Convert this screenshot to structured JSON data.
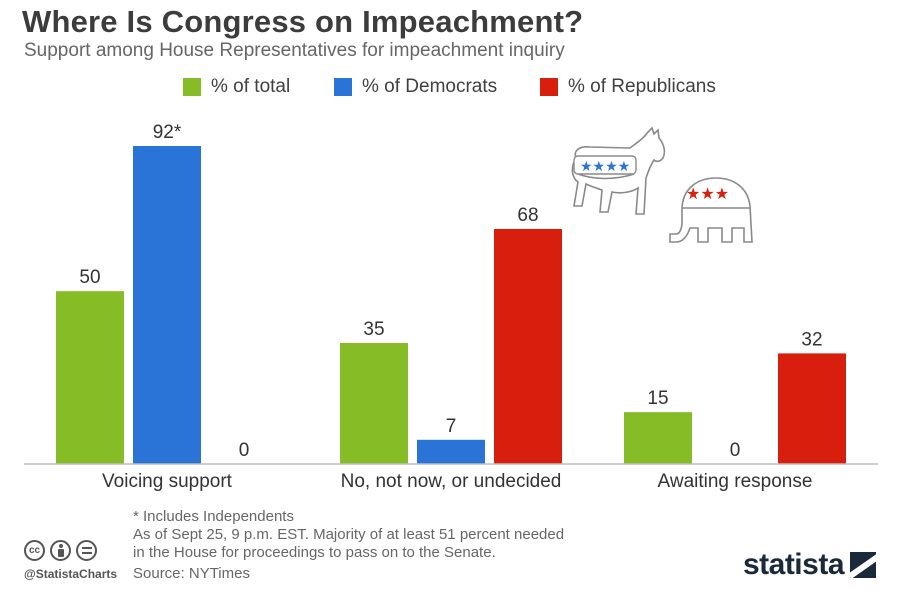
{
  "title": "Where Is Congress on Impeachment?",
  "subtitle": "Support among House Representatives for impeachment inquiry",
  "legend": [
    {
      "label": "% of total",
      "color": "#86bc25"
    },
    {
      "label": "% of Democrats",
      "color": "#2a74d8"
    },
    {
      "label": "% of Republicans",
      "color": "#d81f0d"
    }
  ],
  "chart_data": {
    "type": "bar",
    "categories": [
      "Voicing support",
      "No, not now, or undecided",
      "Awaiting response"
    ],
    "series": [
      {
        "name": "% of total",
        "color": "#86bc25",
        "values": [
          50,
          35,
          15
        ]
      },
      {
        "name": "% of Democrats",
        "color": "#2a74d8",
        "values": [
          92,
          7,
          0
        ]
      },
      {
        "name": "% of Republicans",
        "color": "#d81f0d",
        "values": [
          0,
          68,
          32
        ]
      }
    ],
    "data_labels": [
      [
        "50",
        "35",
        "15"
      ],
      [
        "92*",
        "7",
        "0"
      ],
      [
        "0",
        "68",
        "32"
      ]
    ],
    "ylim": [
      0,
      100
    ],
    "grid": false,
    "legend_position": "top"
  },
  "footnote": {
    "line1": "* Includes Independents",
    "line2": "As of Sept 25, 9 p.m. EST. Majority of at least 51 percent needed",
    "line3": "in the House for proceedings to pass on to the Senate."
  },
  "source": "Source: NYTimes",
  "handle": "@StatistaCharts",
  "brand": "statista",
  "icons": {
    "cc": "creative-commons-icon",
    "by": "attribution-icon",
    "nd": "no-derivatives-icon",
    "donkey": "democrat-donkey-icon",
    "elephant": "republican-elephant-icon"
  }
}
